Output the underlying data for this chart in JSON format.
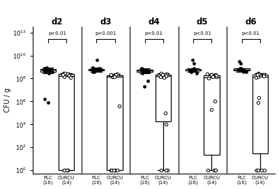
{
  "days": [
    "d2",
    "d3",
    "d4",
    "d5",
    "d6"
  ],
  "pvalues": [
    "p<0.01",
    "p<0.001",
    "p<0.01",
    "p<0.01",
    "p<0.01"
  ],
  "ylabel": "CFU / g",
  "yticks": [
    1.0,
    100.0,
    10000.0,
    1000000.0,
    100000000.0,
    10000000000.0,
    1000000000000.0
  ],
  "plc_n": 16,
  "curcu_n": 14,
  "plc_data": {
    "d2": [
      500000000.0,
      600000000.0,
      700000000.0,
      800000000.0,
      900000000.0,
      500000000.0,
      600000000.0,
      700000000.0,
      400000000.0,
      300000000.0,
      800000000.0,
      600000000.0,
      500000000.0,
      400000000.0,
      1500000.0,
      800000.0
    ],
    "d3": [
      500000000.0,
      600000000.0,
      500000000.0,
      700000000.0,
      800000000.0,
      900000000.0,
      600000000.0,
      700000000.0,
      400000000.0,
      500000000.0,
      700000000.0,
      600000000.0,
      500000000.0,
      600000000.0,
      400000000.0,
      4000000000.0
    ],
    "d4": [
      500000000.0,
      500000000.0,
      600000000.0,
      600000000.0,
      700000000.0,
      800000000.0,
      500000000.0,
      400000000.0,
      600000000.0,
      400000000.0,
      600000000.0,
      500000000.0,
      400000000.0,
      300000000.0,
      60000000.0,
      20000000.0
    ],
    "d5": [
      500000000.0,
      500000000.0,
      600000000.0,
      600000000.0,
      700000000.0,
      800000000.0,
      500000000.0,
      400000000.0,
      500000000.0,
      400000000.0,
      600000000.0,
      500000000.0,
      400000000.0,
      300000000.0,
      2000000000.0,
      4000000000.0
    ],
    "d6": [
      500000000.0,
      500000000.0,
      600000000.0,
      700000000.0,
      800000000.0,
      800000000.0,
      600000000.0,
      500000000.0,
      500000000.0,
      400000000.0,
      600000000.0,
      700000000.0,
      500000000.0,
      400000000.0,
      3000000000.0,
      2000000000.0
    ]
  },
  "curcu_data": {
    "d2": [
      200000000.0,
      250000000.0,
      150000000.0,
      300000000.0,
      280000000.0,
      200000000.0,
      250000000.0,
      180000000.0,
      120000000.0,
      1,
      1,
      1,
      1,
      1
    ],
    "d3": [
      180000000.0,
      200000000.0,
      150000000.0,
      250000000.0,
      200000000.0,
      180000000.0,
      200000000.0,
      150000000.0,
      400000.0,
      1,
      1,
      1,
      1,
      1
    ],
    "d4": [
      180000000.0,
      200000000.0,
      150000000.0,
      280000000.0,
      250000000.0,
      200000000.0,
      220000000.0,
      160000000.0,
      120000000.0,
      100000.0,
      10000.0,
      1,
      1,
      1
    ],
    "d5": [
      150000000.0,
      200000000.0,
      100000000.0,
      250000000.0,
      200000000.0,
      180000000.0,
      200000000.0,
      150000000.0,
      1000000.0,
      200000.0,
      1,
      1,
      1,
      1
    ],
    "d6": [
      150000000.0,
      200000000.0,
      120000000.0,
      280000000.0,
      250000000.0,
      200000000.0,
      220000000.0,
      160000000.0,
      2000000.0,
      800000.0,
      1,
      1,
      1,
      1
    ]
  },
  "background_color": "#ffffff"
}
